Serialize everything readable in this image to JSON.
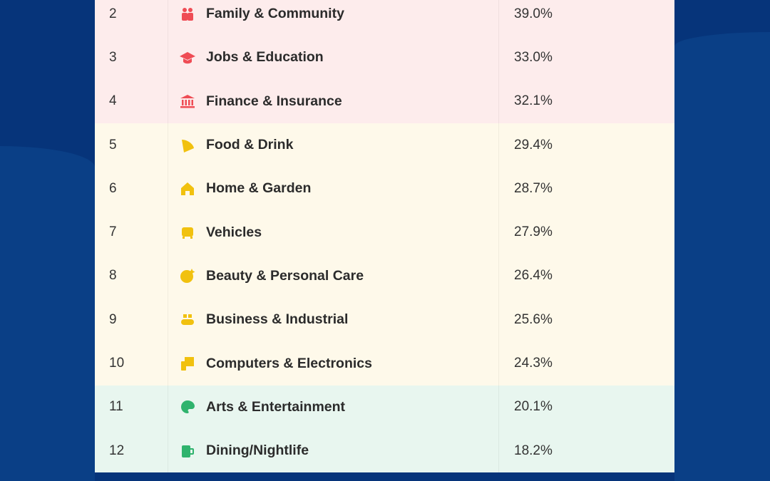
{
  "colors": {
    "red": "#ef4c55",
    "yellow": "#f1c10f",
    "green": "#2fb36d",
    "background": "#06347a"
  },
  "rows": [
    {
      "rank": "2",
      "category": "Family & Community",
      "value": "39.0%",
      "icon": "family-icon",
      "group": "red"
    },
    {
      "rank": "3",
      "category": "Jobs & Education",
      "value": "33.0%",
      "icon": "graduation-cap-icon",
      "group": "red"
    },
    {
      "rank": "4",
      "category": "Finance & Insurance",
      "value": "32.1%",
      "icon": "bank-icon",
      "group": "red"
    },
    {
      "rank": "5",
      "category": "Food & Drink",
      "value": "29.4%",
      "icon": "pizza-icon",
      "group": "yellow"
    },
    {
      "rank": "6",
      "category": "Home & Garden",
      "value": "28.7%",
      "icon": "house-icon",
      "group": "yellow"
    },
    {
      "rank": "7",
      "category": "Vehicles",
      "value": "27.9%",
      "icon": "car-icon",
      "group": "yellow"
    },
    {
      "rank": "8",
      "category": "Beauty & Personal Care",
      "value": "26.4%",
      "icon": "smiley-sparkle-icon",
      "group": "yellow"
    },
    {
      "rank": "9",
      "category": "Business & Industrial",
      "value": "25.6%",
      "icon": "conveyor-icon",
      "group": "yellow"
    },
    {
      "rank": "10",
      "category": "Computers & Electronics",
      "value": "24.3%",
      "icon": "devices-icon",
      "group": "yellow"
    },
    {
      "rank": "11",
      "category": "Arts & Entertainment",
      "value": "20.1%",
      "icon": "palette-icon",
      "group": "green"
    },
    {
      "rank": "12",
      "category": "Dining/Nightlife",
      "value": "18.2%",
      "icon": "beer-mug-icon",
      "group": "green"
    }
  ]
}
